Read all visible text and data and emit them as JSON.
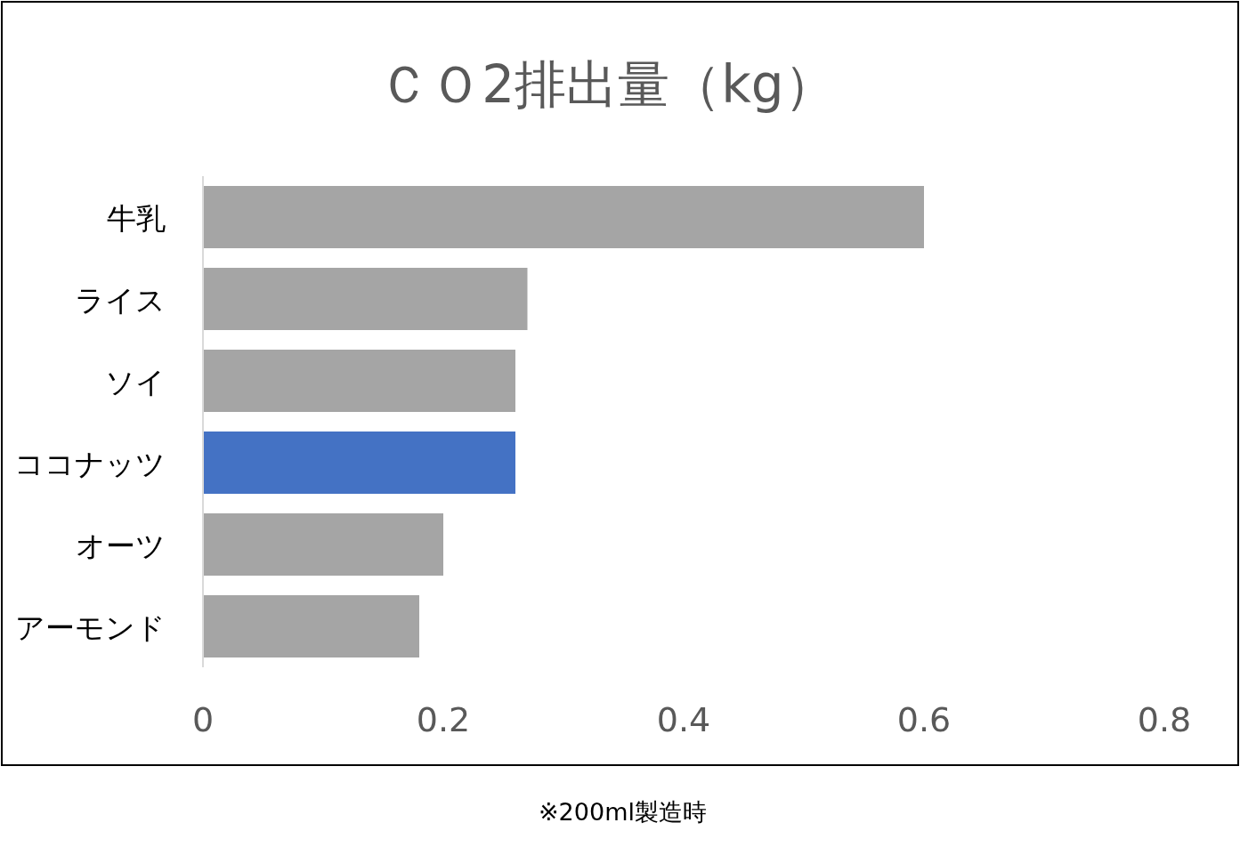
{
  "chart_data": {
    "type": "bar",
    "orientation": "horizontal",
    "title": "ＣＯ2排出量（kg）",
    "categories": [
      "牛乳",
      "ライス",
      "ソイ",
      "ココナッツ",
      "オーツ",
      "アーモンド"
    ],
    "values": [
      0.6,
      0.27,
      0.26,
      0.26,
      0.2,
      0.18
    ],
    "colors": [
      "#a5a5a5",
      "#a5a5a5",
      "#a5a5a5",
      "#4472c4",
      "#a5a5a5",
      "#a5a5a5"
    ],
    "xlim": [
      0,
      0.8
    ],
    "xticks": [
      0,
      0.2,
      0.4,
      0.6,
      0.8
    ],
    "grid": false,
    "annotations": [
      "※200ml製造時"
    ]
  }
}
